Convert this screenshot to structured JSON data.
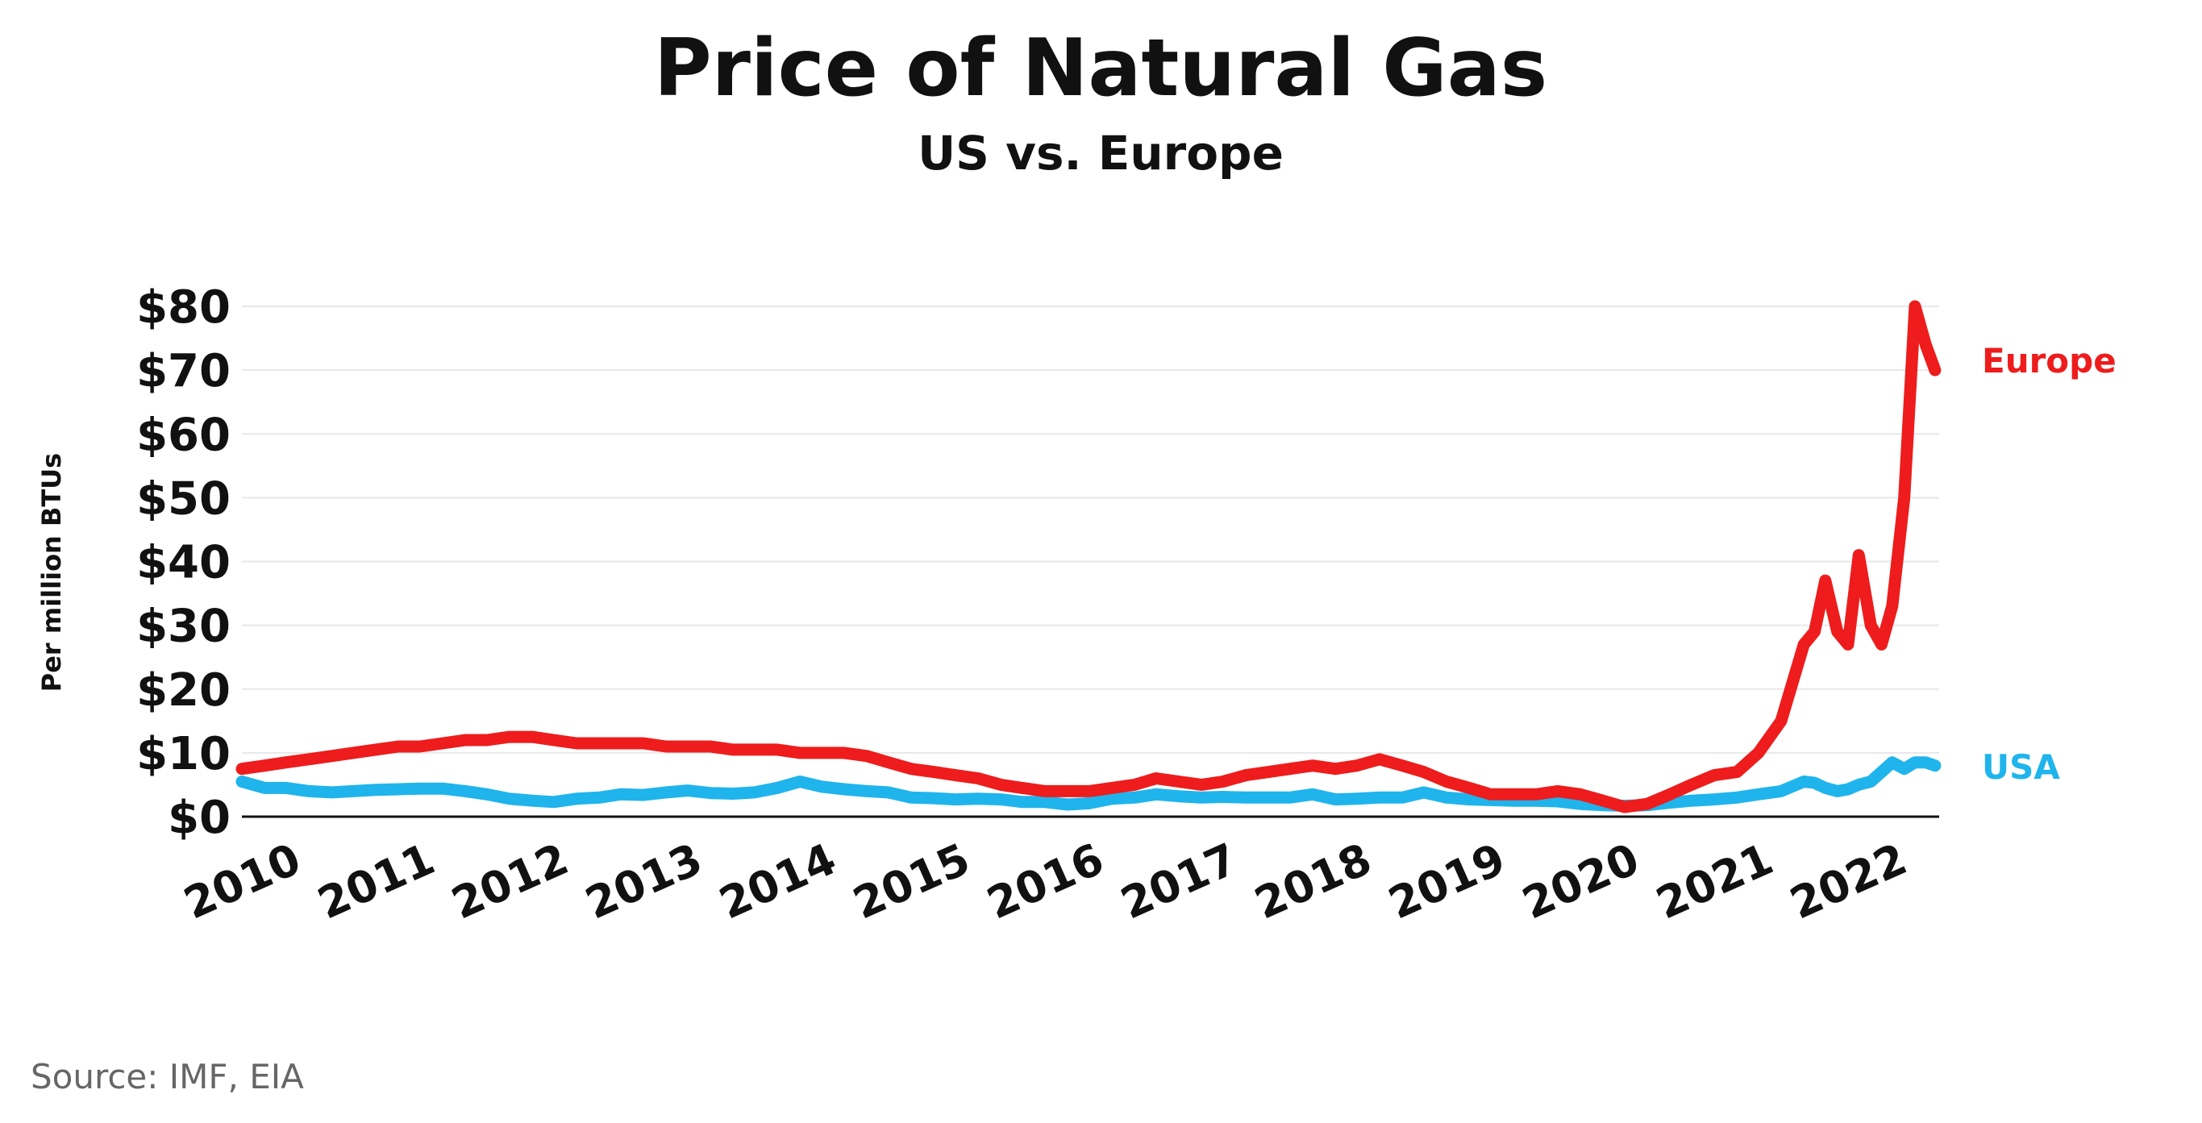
{
  "chart_data": {
    "type": "line",
    "title": "Price of Natural Gas",
    "subtitle": "US vs. Europe",
    "ylabel": "Per million BTUs",
    "ylim": [
      0,
      80
    ],
    "xlim": [
      2010,
      2022.65
    ],
    "y_ticks": [
      0,
      10,
      20,
      30,
      40,
      50,
      60,
      70,
      80
    ],
    "y_tick_labels": [
      "$0",
      "$10",
      "$20",
      "$30",
      "$40",
      "$50",
      "$60",
      "$70",
      "$80"
    ],
    "x_ticks": [
      2010,
      2011,
      2012,
      2013,
      2014,
      2015,
      2016,
      2017,
      2018,
      2019,
      2020,
      2021,
      2022
    ],
    "x_tick_labels": [
      "2010",
      "2011",
      "2012",
      "2013",
      "2014",
      "2015",
      "2016",
      "2017",
      "2018",
      "2019",
      "2020",
      "2021",
      "2022"
    ],
    "grid": true,
    "series": [
      {
        "name": "Europe",
        "color": "#ee1c1c",
        "x": [
          2010.0,
          2010.17,
          2010.33,
          2010.5,
          2010.67,
          2010.83,
          2011.0,
          2011.17,
          2011.33,
          2011.5,
          2011.67,
          2011.83,
          2012.0,
          2012.17,
          2012.33,
          2012.5,
          2012.67,
          2012.83,
          2013.0,
          2013.17,
          2013.33,
          2013.5,
          2013.67,
          2013.83,
          2014.0,
          2014.17,
          2014.33,
          2014.5,
          2014.67,
          2014.83,
          2015.0,
          2015.17,
          2015.33,
          2015.5,
          2015.67,
          2015.83,
          2016.0,
          2016.17,
          2016.33,
          2016.5,
          2016.67,
          2016.83,
          2017.0,
          2017.17,
          2017.33,
          2017.5,
          2017.67,
          2017.83,
          2018.0,
          2018.17,
          2018.33,
          2018.5,
          2018.67,
          2018.83,
          2019.0,
          2019.17,
          2019.33,
          2019.5,
          2019.67,
          2019.83,
          2020.0,
          2020.17,
          2020.33,
          2020.5,
          2020.67,
          2020.83,
          2021.0,
          2021.17,
          2021.33,
          2021.5,
          2021.67,
          2021.75,
          2021.83,
          2021.92,
          2022.0,
          2022.08,
          2022.17,
          2022.25,
          2022.33,
          2022.42,
          2022.5,
          2022.58,
          2022.65
        ],
        "values": [
          7.5,
          8,
          8.5,
          9,
          9.5,
          10,
          10.5,
          11,
          11,
          11.5,
          12,
          12,
          12.5,
          12.5,
          12,
          11.5,
          11.5,
          11.5,
          11.5,
          11,
          11,
          11,
          10.5,
          10.5,
          10.5,
          10,
          10,
          10,
          9.5,
          8.5,
          7.5,
          7,
          6.5,
          6,
          5,
          4.5,
          4,
          4,
          4,
          4.5,
          5,
          6,
          5.5,
          5,
          5.5,
          6.5,
          7,
          7.5,
          8,
          7.5,
          8,
          9,
          8,
          7,
          5.5,
          4.5,
          3.5,
          3.5,
          3.5,
          4,
          3.5,
          2.5,
          1.5,
          2,
          3.5,
          5,
          6.5,
          7,
          10,
          15,
          27,
          29,
          37,
          29,
          27,
          41,
          30,
          27,
          33,
          50,
          80,
          74,
          70
        ]
      },
      {
        "name": "USA",
        "color": "#1fb4ec",
        "x": [
          2010.0,
          2010.17,
          2010.33,
          2010.5,
          2010.67,
          2010.83,
          2011.0,
          2011.17,
          2011.33,
          2011.5,
          2011.67,
          2011.83,
          2012.0,
          2012.17,
          2012.33,
          2012.5,
          2012.67,
          2012.83,
          2013.0,
          2013.17,
          2013.33,
          2013.5,
          2013.67,
          2013.83,
          2014.0,
          2014.17,
          2014.33,
          2014.5,
          2014.67,
          2014.83,
          2015.0,
          2015.17,
          2015.33,
          2015.5,
          2015.67,
          2015.83,
          2016.0,
          2016.17,
          2016.33,
          2016.5,
          2016.67,
          2016.83,
          2017.0,
          2017.17,
          2017.33,
          2017.5,
          2017.67,
          2017.83,
          2018.0,
          2018.17,
          2018.33,
          2018.5,
          2018.67,
          2018.83,
          2019.0,
          2019.17,
          2019.33,
          2019.5,
          2019.67,
          2019.83,
          2020.0,
          2020.17,
          2020.33,
          2020.5,
          2020.67,
          2020.83,
          2021.0,
          2021.17,
          2021.33,
          2021.5,
          2021.67,
          2021.75,
          2021.83,
          2021.92,
          2022.0,
          2022.08,
          2022.17,
          2022.25,
          2022.33,
          2022.42,
          2022.5,
          2022.58,
          2022.65
        ],
        "values": [
          5.5,
          4.5,
          4.5,
          4,
          3.8,
          4,
          4.2,
          4.3,
          4.4,
          4.4,
          4,
          3.5,
          2.8,
          2.5,
          2.3,
          2.8,
          3,
          3.5,
          3.4,
          3.8,
          4.1,
          3.7,
          3.6,
          3.8,
          4.5,
          5.5,
          4.7,
          4.3,
          4,
          3.8,
          3,
          2.9,
          2.7,
          2.8,
          2.7,
          2.3,
          2.3,
          1.9,
          2.1,
          2.8,
          3,
          3.5,
          3.2,
          3,
          3.1,
          3,
          3,
          3,
          3.5,
          2.7,
          2.8,
          3,
          3,
          3.8,
          3,
          2.7,
          2.6,
          2.5,
          2.5,
          2.4,
          2,
          1.8,
          1.7,
          1.8,
          2.2,
          2.5,
          2.7,
          3,
          3.5,
          4,
          5.5,
          5.3,
          4.5,
          4,
          4.3,
          5,
          5.5,
          7,
          8.5,
          7.5,
          8.5,
          8.5,
          8
        ]
      }
    ],
    "annotations": {
      "source": "Source: IMF, EIA"
    }
  }
}
